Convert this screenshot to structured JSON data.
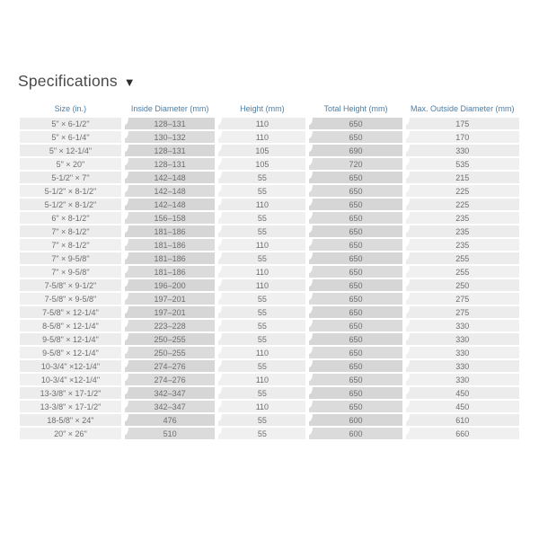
{
  "page": {
    "title": "Specifications",
    "dropdown_icon": "▼"
  },
  "colors": {
    "header_text": "#4e7da4",
    "light_cell": "#ececec",
    "dark_cell": "#d6d6d6",
    "cell_text": "#6e6e6e",
    "title_text": "#4a4a4a"
  },
  "table": {
    "columns": [
      "Size (in.)",
      "Inside Diameter (mm)",
      "Height (mm)",
      "Total Height (mm)",
      "Max. Outside Diameter (mm)"
    ],
    "rows": [
      [
        "5\" × 6-1/2\"",
        "128–131",
        "110",
        "650",
        "175"
      ],
      [
        "5\" × 6-1/4\"",
        "130–132",
        "110",
        "650",
        "170"
      ],
      [
        "5\" × 12-1/4\"",
        "128–131",
        "105",
        "690",
        "330"
      ],
      [
        "5\" × 20\"",
        "128–131",
        "105",
        "720",
        "535"
      ],
      [
        "5-1/2\" × 7\"",
        "142–148",
        "55",
        "650",
        "215"
      ],
      [
        "5-1/2\" × 8-1/2\"",
        "142–148",
        "55",
        "650",
        "225"
      ],
      [
        "5-1/2\" × 8-1/2\"",
        "142–148",
        "110",
        "650",
        "225"
      ],
      [
        "6\" × 8-1/2\"",
        "156–158",
        "55",
        "650",
        "235"
      ],
      [
        "7\" × 8-1/2\"",
        "181–186",
        "55",
        "650",
        "235"
      ],
      [
        "7\" × 8-1/2\"",
        "181–186",
        "110",
        "650",
        "235"
      ],
      [
        "7\" × 9-5/8\"",
        "181–186",
        "55",
        "650",
        "255"
      ],
      [
        "7\" × 9-5/8\"",
        "181–186",
        "110",
        "650",
        "255"
      ],
      [
        "7-5/8\" × 9-1/2\"",
        "196–200",
        "110",
        "650",
        "250"
      ],
      [
        "7-5/8\" × 9-5/8\"",
        "197–201",
        "55",
        "650",
        "275"
      ],
      [
        "7-5/8\" × 12-1/4\"",
        "197–201",
        "55",
        "650",
        "275"
      ],
      [
        "8-5/8\" × 12-1/4\"",
        "223–228",
        "55",
        "650",
        "330"
      ],
      [
        "9-5/8\" × 12-1/4\"",
        "250–255",
        "55",
        "650",
        "330"
      ],
      [
        "9-5/8\" × 12-1/4\"",
        "250–255",
        "110",
        "650",
        "330"
      ],
      [
        "10-3/4\" ×12-1/4\"",
        "274–276",
        "55",
        "650",
        "330"
      ],
      [
        "10-3/4\" ×12-1/4\"",
        "274–276",
        "110",
        "650",
        "330"
      ],
      [
        "13-3/8\" × 17-1/2\"",
        "342–347",
        "55",
        "650",
        "450"
      ],
      [
        "13-3/8\" × 17-1/2\"",
        "342–347",
        "110",
        "650",
        "450"
      ],
      [
        "18-5/8\" × 24\"",
        "476",
        "55",
        "600",
        "610"
      ],
      [
        "20\" × 26\"",
        "510",
        "55",
        "600",
        "660"
      ]
    ]
  }
}
